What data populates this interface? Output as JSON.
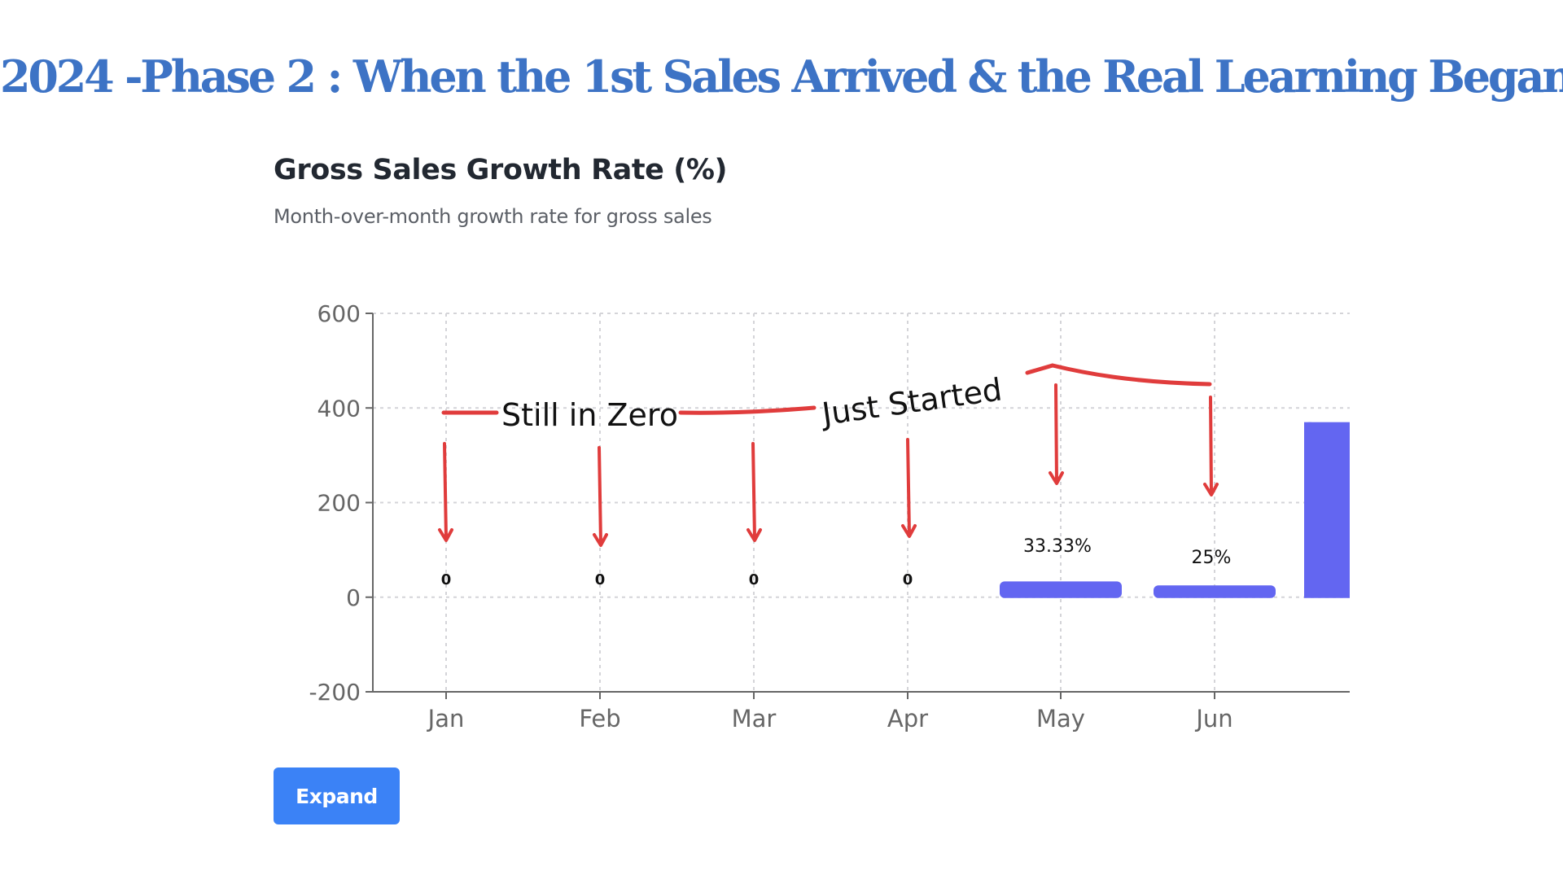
{
  "page": {
    "title": "2024 -Phase 2 : When the 1st Sales Arrived & the Real Learning Began"
  },
  "chart_data": {
    "type": "bar",
    "title": "Gross Sales Growth Rate (%)",
    "subtitle": "Month-over-month growth rate for gross sales",
    "categories": [
      "Jan",
      "Feb",
      "Mar",
      "Apr",
      "May",
      "Jun"
    ],
    "values": [
      0,
      0,
      0,
      0,
      33.33,
      25
    ],
    "data_labels": [
      "0",
      "0",
      "0",
      "0",
      "33.33%",
      "25%"
    ],
    "extra_bar_partial": {
      "value": 370,
      "label": ""
    },
    "ylim": [
      -200,
      600
    ],
    "yticks": [
      600,
      400,
      200,
      0,
      -200
    ],
    "grid": true,
    "xlabel": "",
    "ylabel": "",
    "bar_color": "#6366f1",
    "annotations": [
      {
        "text": "Still in Zero",
        "color": "#e03c3c"
      },
      {
        "text": "Just Started",
        "color": "#e03c3c"
      }
    ]
  },
  "actions": {
    "expand_label": "Expand"
  },
  "colors": {
    "title": "#3d73c5",
    "button": "#3b82f6",
    "annotation": "#e03c3c"
  }
}
